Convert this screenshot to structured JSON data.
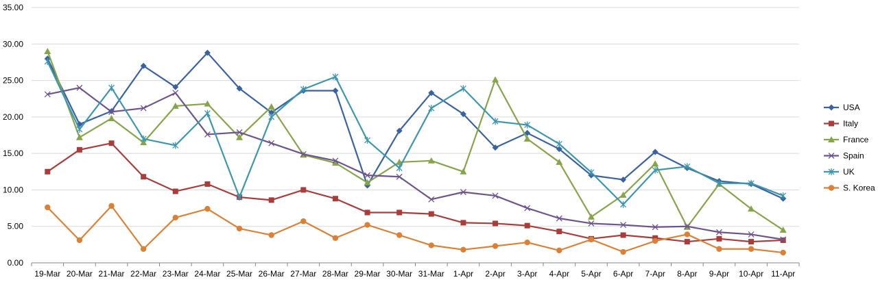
{
  "chart_data": {
    "type": "line",
    "title": "",
    "xlabel": "",
    "ylabel": "",
    "ylim": [
      0,
      35
    ],
    "y_ticks": [
      "0.00",
      "5.00",
      "10.00",
      "15.00",
      "20.00",
      "25.00",
      "30.00",
      "35.00"
    ],
    "grid": "horizontal",
    "legend_position": "right",
    "categories": [
      "19-Mar",
      "20-Mar",
      "21-Mar",
      "22-Mar",
      "23-Mar",
      "24-Mar",
      "25-Mar",
      "26-Mar",
      "27-Mar",
      "28-Mar",
      "29-Mar",
      "30-Mar",
      "31-Mar",
      "1-Apr",
      "2-Apr",
      "3-Apr",
      "4-Apr",
      "5-Apr",
      "6-Apr",
      "7-Apr",
      "8-Apr",
      "9-Apr",
      "10-Apr",
      "11-Apr"
    ],
    "series": [
      {
        "name": "USA",
        "color": "#3a62a0",
        "marker": "diamond",
        "values": [
          28.0,
          19.0,
          20.8,
          27.0,
          24.1,
          28.8,
          23.9,
          20.6,
          23.6,
          23.6,
          10.6,
          18.1,
          23.3,
          20.4,
          15.8,
          17.8,
          15.6,
          12.0,
          11.4,
          15.2,
          13.0,
          11.2,
          10.8,
          8.8
        ]
      },
      {
        "name": "Italy",
        "color": "#a83d3b",
        "marker": "square",
        "values": [
          12.5,
          15.5,
          16.4,
          11.8,
          9.8,
          10.8,
          9.0,
          8.6,
          10.0,
          8.8,
          6.9,
          6.9,
          6.7,
          5.5,
          5.4,
          5.1,
          4.3,
          3.3,
          3.8,
          3.4,
          2.9,
          3.3,
          2.9,
          3.1
        ]
      },
      {
        "name": "France",
        "color": "#86a44a",
        "marker": "triangle",
        "values": [
          29.0,
          17.2,
          19.8,
          16.5,
          21.5,
          21.8,
          17.2,
          21.4,
          14.8,
          13.7,
          11.0,
          13.8,
          14.0,
          12.5,
          25.1,
          17.0,
          13.8,
          6.3,
          9.3,
          13.6,
          4.9,
          10.8,
          7.4,
          4.5
        ]
      },
      {
        "name": "Spain",
        "color": "#6e548d",
        "marker": "x",
        "values": [
          23.1,
          24.0,
          20.7,
          21.2,
          23.3,
          17.6,
          17.9,
          16.4,
          14.9,
          14.0,
          12.0,
          11.8,
          8.7,
          9.7,
          9.2,
          7.5,
          6.1,
          5.4,
          5.2,
          4.9,
          5.0,
          4.2,
          3.9,
          3.2
        ]
      },
      {
        "name": "UK",
        "color": "#3d96ae",
        "marker": "star",
        "values": [
          27.6,
          18.3,
          24.0,
          17.0,
          16.1,
          20.5,
          9.0,
          20.0,
          23.8,
          25.5,
          16.8,
          13.0,
          21.2,
          23.9,
          19.4,
          18.9,
          16.3,
          12.4,
          8.0,
          12.7,
          13.2,
          10.9,
          10.9,
          9.2
        ]
      },
      {
        "name": "S. Korea",
        "color": "#da8137",
        "marker": "circle",
        "values": [
          7.6,
          3.1,
          7.8,
          1.9,
          6.2,
          7.4,
          4.7,
          3.8,
          5.7,
          3.4,
          5.2,
          3.8,
          2.4,
          1.8,
          2.3,
          2.8,
          1.7,
          3.2,
          1.5,
          3.0,
          3.9,
          1.9,
          1.9,
          1.4
        ]
      }
    ]
  }
}
